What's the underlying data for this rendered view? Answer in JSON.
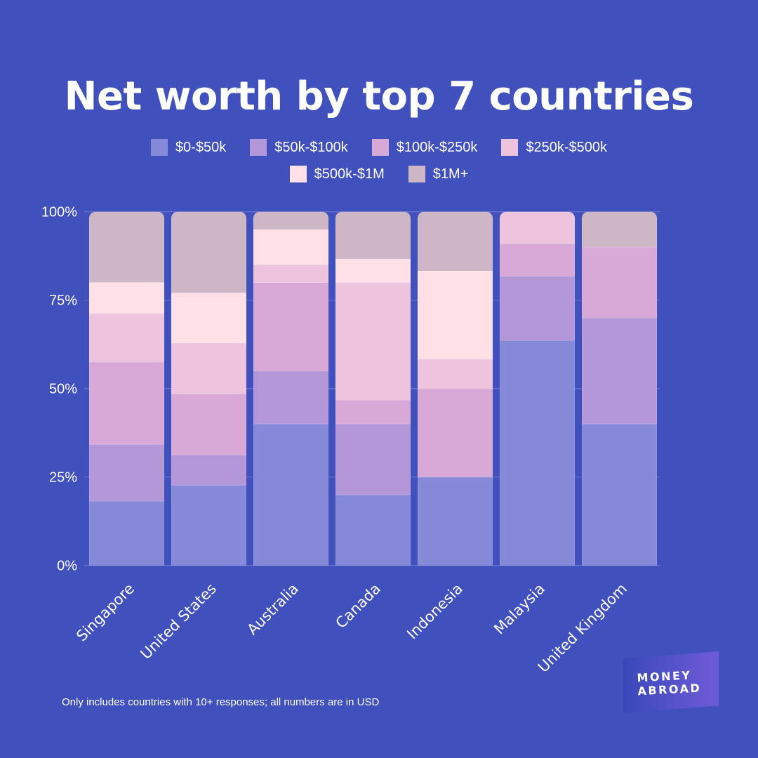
{
  "title": "Net worth by top 7 countries",
  "footnote": "Only includes countries with 10+ responses; all numbers are in USD",
  "logo": {
    "line1": "MONEY",
    "line2": "ABROAD"
  },
  "background_color": "#4050BC",
  "chart_data": {
    "type": "bar",
    "stacked": true,
    "normalized": true,
    "title": "Net worth by top 7 countries",
    "xlabel": "",
    "ylabel": "",
    "ylim": [
      0,
      100
    ],
    "yticks": [
      "0%",
      "25%",
      "50%",
      "75%",
      "100%"
    ],
    "grid": true,
    "legend_position": "top-center",
    "categories": [
      "Singapore",
      "United States",
      "Australia",
      "Canada",
      "Indonesia",
      "Malaysia",
      "United Kingdom"
    ],
    "series": [
      {
        "name": "$0-$50k",
        "color": "#8589D8",
        "values": [
          18.2,
          22.7,
          40,
          20,
          25,
          63.6,
          40
        ]
      },
      {
        "name": "$50k-$100k",
        "color": "#B397D8",
        "values": [
          16.0,
          8.6,
          15,
          20,
          0,
          18.2,
          30
        ]
      },
      {
        "name": "$100k-$250k",
        "color": "#D8A9D6",
        "values": [
          23.3,
          17.2,
          25,
          6.7,
          25,
          9.1,
          20
        ]
      },
      {
        "name": "$250k-$500k",
        "color": "#EEC3DE",
        "values": [
          13.7,
          14.3,
          5,
          33.3,
          8.3,
          9.1,
          0
        ]
      },
      {
        "name": "$500k-$1M",
        "color": "#FFE0E6",
        "values": [
          8.8,
          14.3,
          10,
          6.7,
          25,
          0,
          0
        ]
      },
      {
        "name": "$1M+",
        "color": "#CDB6C6",
        "values": [
          20.0,
          22.9,
          5,
          13.3,
          16.7,
          0,
          10
        ]
      }
    ]
  }
}
